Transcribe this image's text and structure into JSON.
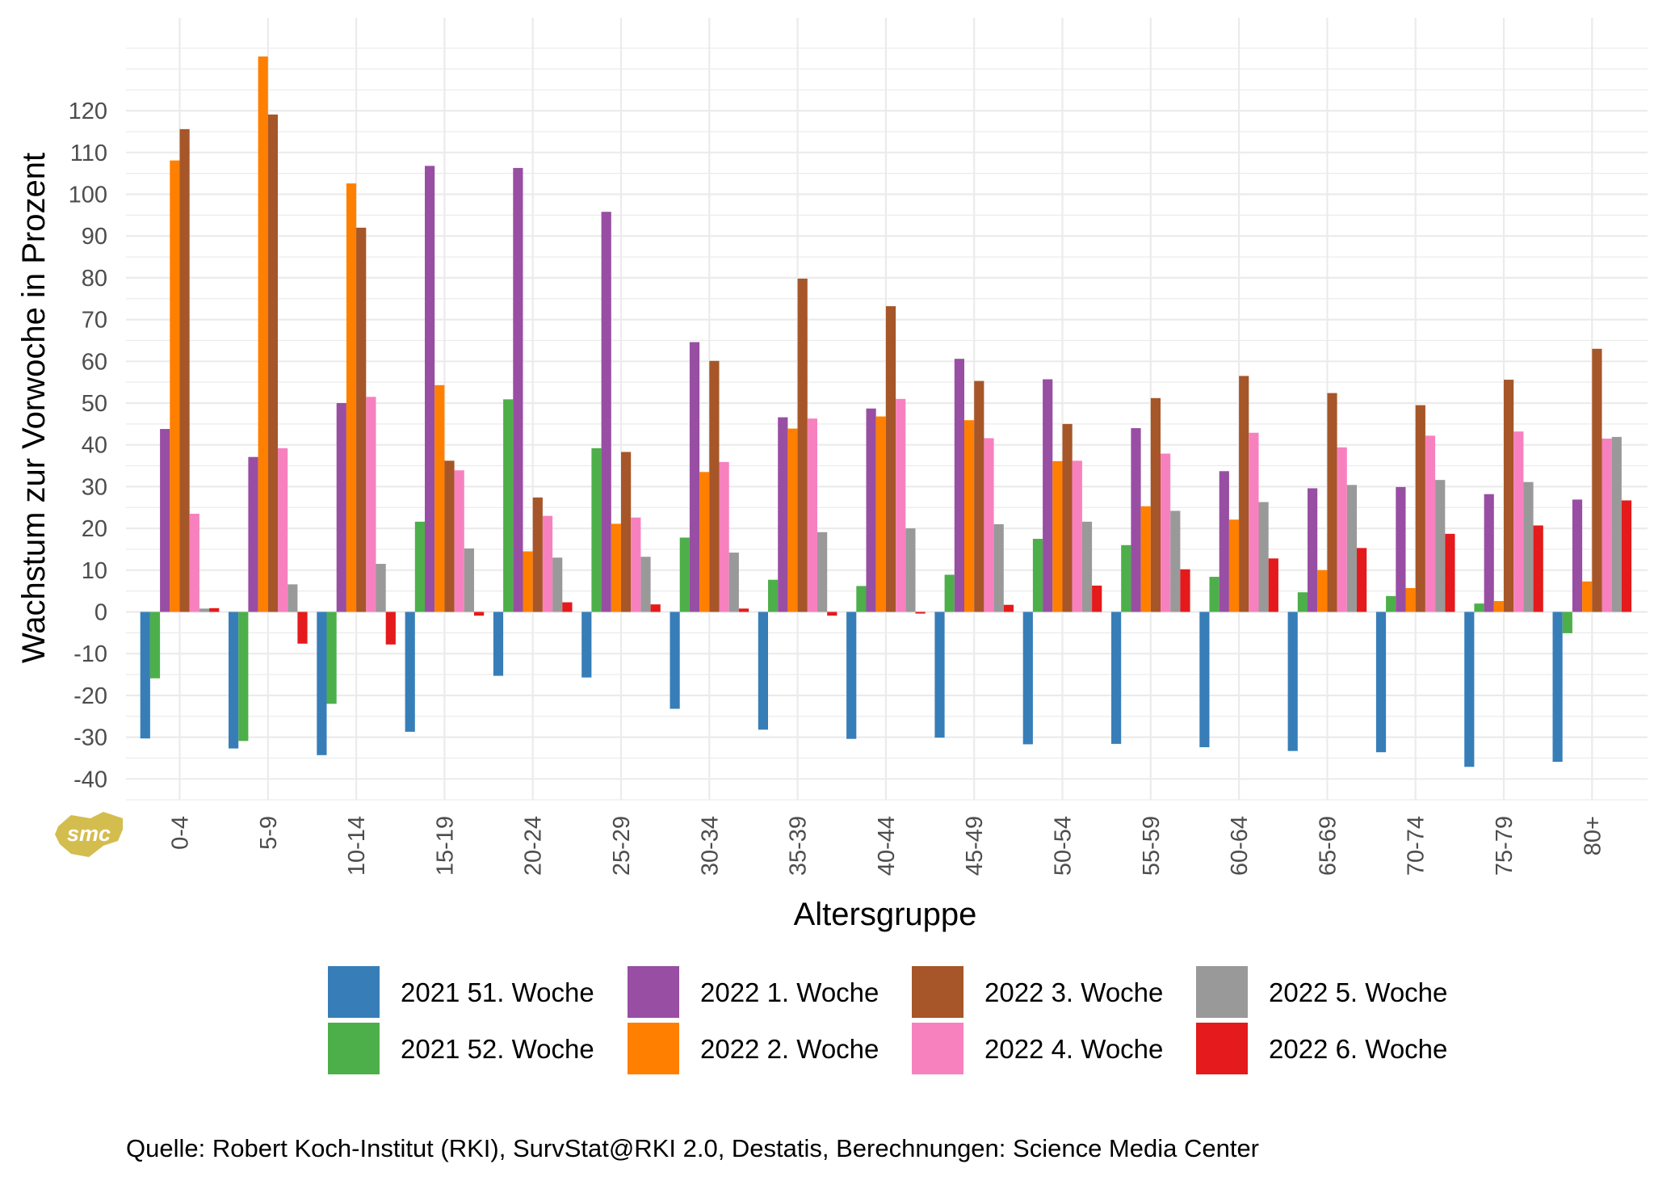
{
  "chart_data": {
    "type": "bar",
    "xlabel": "Altersgruppe",
    "ylabel": "Wachstum zur Vorwoche in Prozent",
    "ylim": [
      -45,
      135
    ],
    "yticks": [
      -40,
      -30,
      -20,
      -10,
      0,
      10,
      20,
      30,
      40,
      50,
      60,
      70,
      80,
      90,
      100,
      110,
      120
    ],
    "categories": [
      "0-4",
      "5-9",
      "10-14",
      "15-19",
      "20-24",
      "25-29",
      "30-34",
      "35-39",
      "40-44",
      "45-49",
      "50-54",
      "55-59",
      "60-64",
      "65-69",
      "70-74",
      "75-79",
      "80+"
    ],
    "series": [
      {
        "name": "2021 51. Woche",
        "color": "#377eb8",
        "values": [
          -30.3,
          -32.7,
          -34.3,
          -28.7,
          -15.3,
          -15.7,
          -23.2,
          -28.2,
          -30.4,
          -30.1,
          -31.7,
          -31.6,
          -32.4,
          -33.3,
          -33.6,
          -37.1,
          -35.9
        ]
      },
      {
        "name": "2021 52. Woche",
        "color": "#4daf4a",
        "values": [
          -15.9,
          -30.9,
          -22.0,
          21.6,
          50.9,
          39.2,
          17.8,
          7.7,
          6.2,
          8.9,
          17.5,
          16.0,
          8.4,
          4.7,
          3.8,
          2.0,
          -5.1
        ]
      },
      {
        "name": "2022 1. Woche",
        "color": "#984ea3",
        "values": [
          43.8,
          37.1,
          50.0,
          106.8,
          106.3,
          95.8,
          64.6,
          46.6,
          48.7,
          60.6,
          55.7,
          44.0,
          33.7,
          29.6,
          29.9,
          28.2,
          26.9
        ]
      },
      {
        "name": "2022 2. Woche",
        "color": "#ff7f00",
        "values": [
          108.1,
          133.0,
          102.6,
          54.3,
          14.5,
          21.1,
          33.5,
          43.9,
          46.8,
          45.9,
          36.1,
          25.3,
          22.1,
          10.0,
          5.7,
          2.6,
          7.3
        ]
      },
      {
        "name": "2022 3. Woche",
        "color": "#a65628",
        "values": [
          115.6,
          119.1,
          92.0,
          36.2,
          27.4,
          38.3,
          60.1,
          79.8,
          73.2,
          55.3,
          45.0,
          51.2,
          56.5,
          52.4,
          49.5,
          55.6,
          63.0
        ]
      },
      {
        "name": "2022 4. Woche",
        "color": "#f781bf",
        "values": [
          23.5,
          39.2,
          51.5,
          33.9,
          23.0,
          22.6,
          35.9,
          46.3,
          51.0,
          41.6,
          36.2,
          37.9,
          42.9,
          39.4,
          42.2,
          43.2,
          41.5
        ]
      },
      {
        "name": "2022 5. Woche",
        "color": "#999999",
        "values": [
          0.8,
          6.6,
          11.5,
          15.2,
          13.0,
          13.2,
          14.2,
          19.1,
          20.0,
          21.0,
          21.6,
          24.2,
          26.3,
          30.4,
          31.6,
          31.1,
          41.9
        ]
      },
      {
        "name": "2022 6. Woche",
        "color": "#e41a1c",
        "values": [
          0.9,
          -7.6,
          -7.8,
          -0.9,
          2.3,
          1.8,
          0.8,
          -0.9,
          -0.4,
          1.7,
          6.3,
          10.2,
          12.8,
          15.3,
          18.7,
          20.7,
          26.7
        ]
      }
    ],
    "caption": "Quelle: Robert Koch-Institut (RKI), SurvStat@RKI 2.0, Destatis, Berechnungen: Science Media Center",
    "logo_text": "smc"
  }
}
